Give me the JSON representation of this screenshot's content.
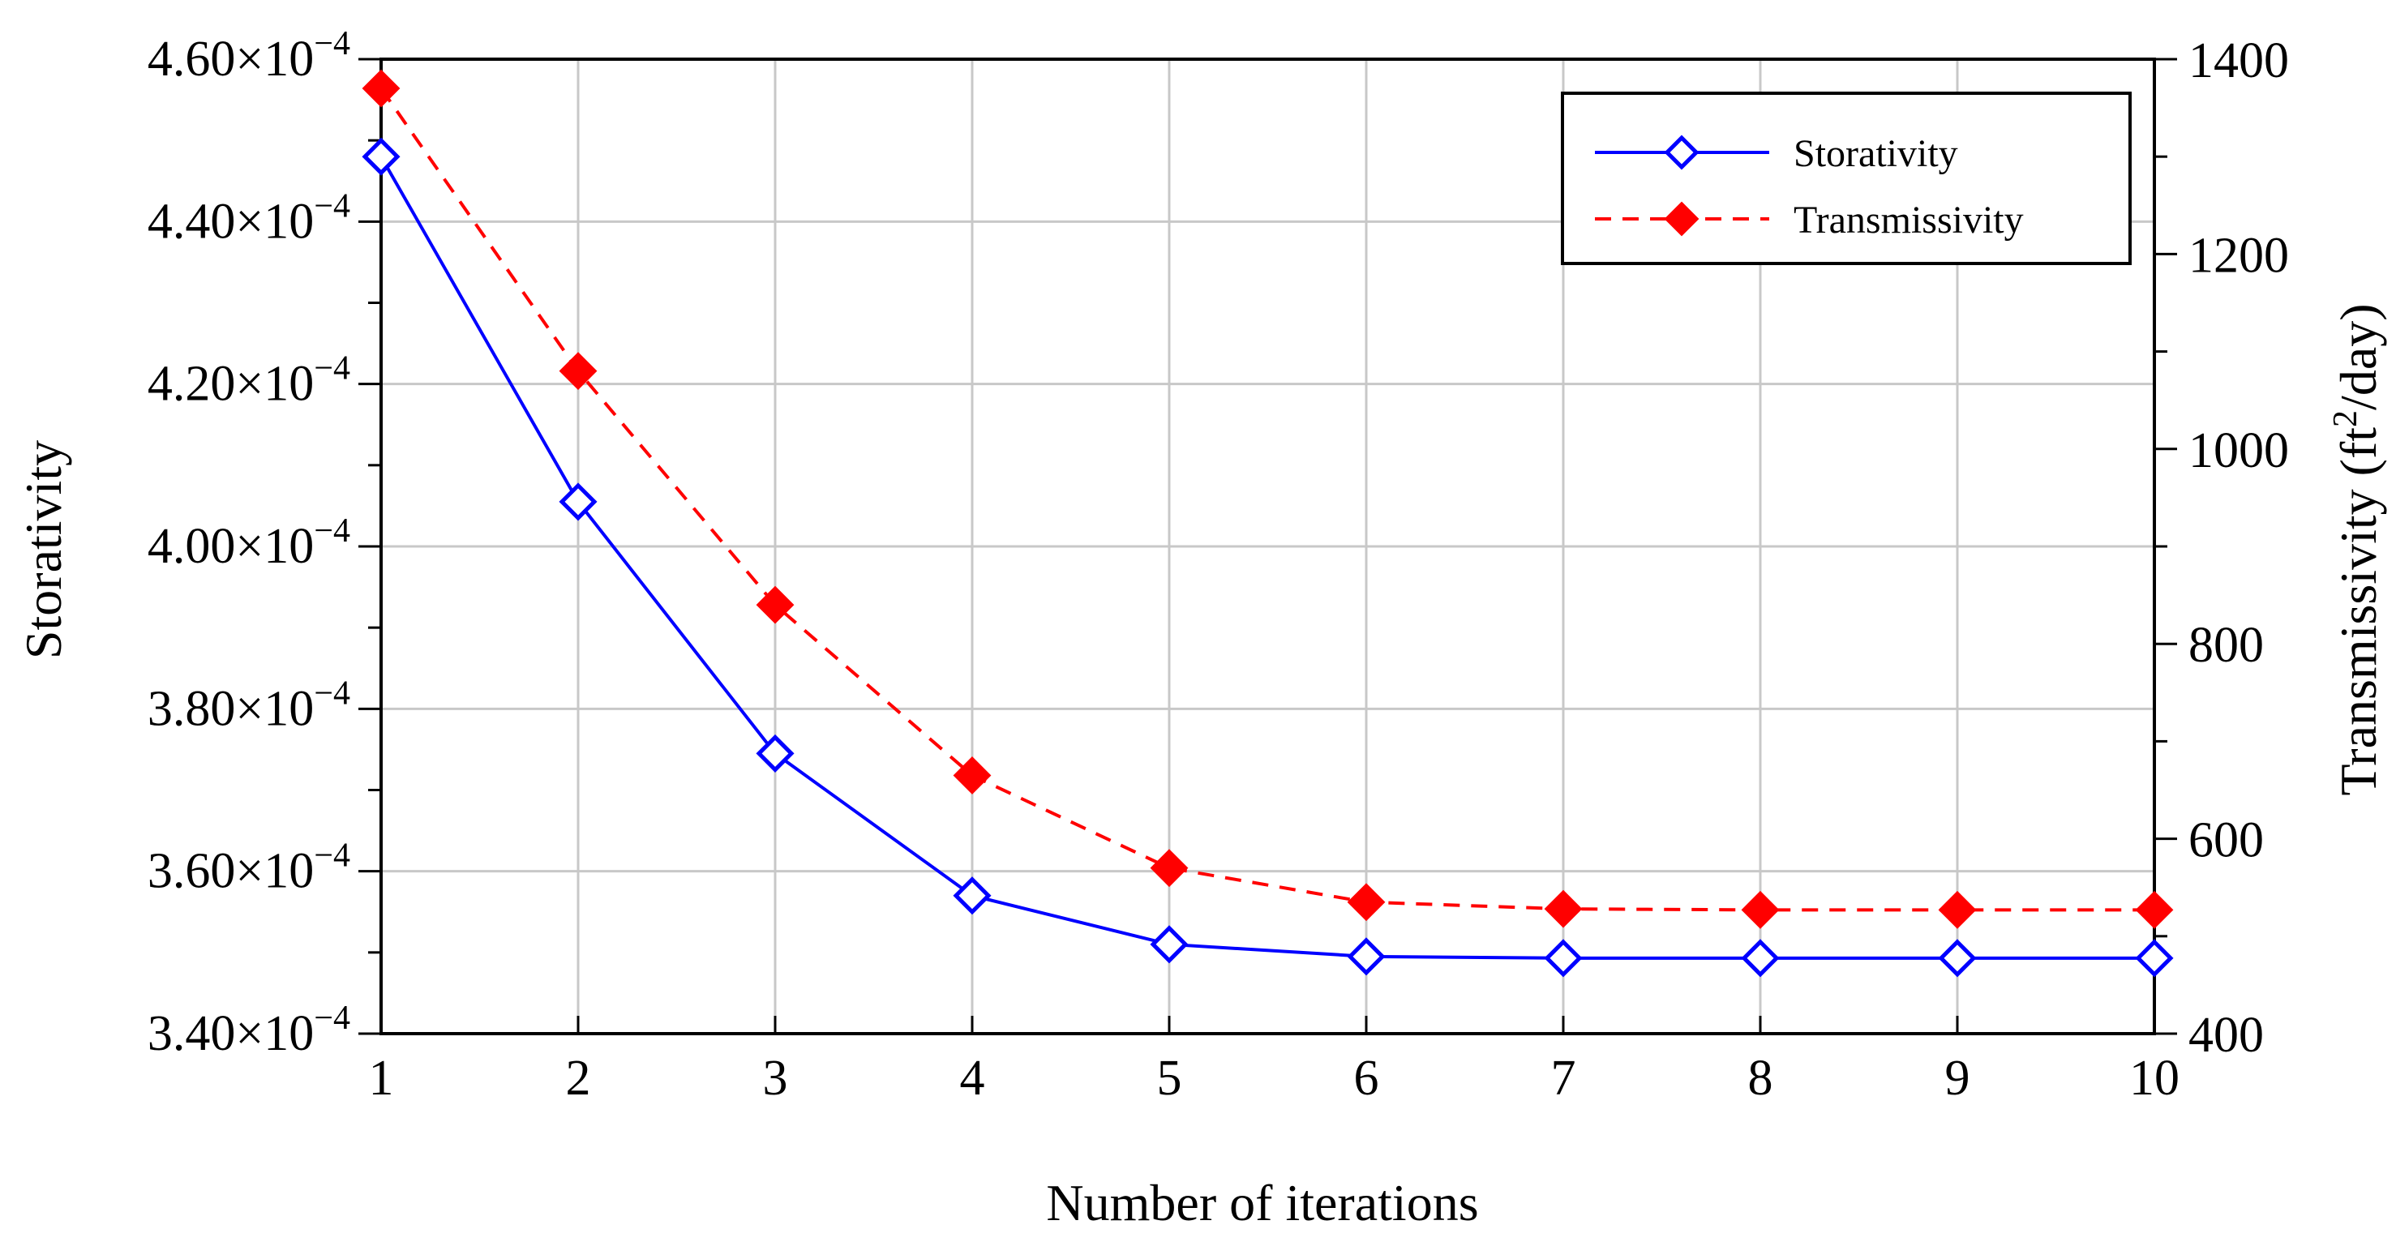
{
  "chart_data": {
    "type": "line",
    "title": "",
    "xlabel": "Number of iterations",
    "ylabel_left": "Storativity",
    "ylabel_right": {
      "prefix": "Transmissivity (ft",
      "sup": "2",
      "suffix": "/day)"
    },
    "x": [
      1,
      2,
      3,
      4,
      5,
      6,
      7,
      8,
      9,
      10
    ],
    "xlim": [
      1,
      10
    ],
    "ylim_left": [
      0.00034,
      0.00046
    ],
    "ylim_right": [
      400,
      1400
    ],
    "grid": true,
    "legend_position": "top-right",
    "x_ticks": [
      "1",
      "2",
      "3",
      "4",
      "5",
      "6",
      "7",
      "8",
      "9",
      "10"
    ],
    "left_ticks": [
      {
        "value": 0.00034,
        "mantissa": "3.40",
        "exponent": "−4"
      },
      {
        "value": 0.00036,
        "mantissa": "3.60",
        "exponent": "−4"
      },
      {
        "value": 0.00038,
        "mantissa": "3.80",
        "exponent": "−4"
      },
      {
        "value": 0.0004,
        "mantissa": "4.00",
        "exponent": "−4"
      },
      {
        "value": 0.00042,
        "mantissa": "4.20",
        "exponent": "−4"
      },
      {
        "value": 0.00044,
        "mantissa": "4.40",
        "exponent": "−4"
      },
      {
        "value": 0.00046,
        "mantissa": "4.60",
        "exponent": "−4"
      }
    ],
    "times_sign": "×10",
    "right_ticks": [
      "400",
      "600",
      "800",
      "1000",
      "1200",
      "1400"
    ],
    "series": [
      {
        "name": "Storativity",
        "axis": "left",
        "color": "#0000ff",
        "dashed": false,
        "marker": "diamond-open",
        "values": [
          0.000448,
          0.0004055,
          0.0003745,
          0.000357,
          0.000351,
          0.0003495,
          0.0003493,
          0.0003493,
          0.0003493,
          0.0003493
        ]
      },
      {
        "name": "Transmissivity",
        "axis": "right",
        "color": "#ff0000",
        "dashed": true,
        "marker": "diamond-filled",
        "values": [
          1370,
          1080,
          840,
          665,
          570,
          535,
          528,
          527,
          527,
          527
        ]
      }
    ]
  }
}
